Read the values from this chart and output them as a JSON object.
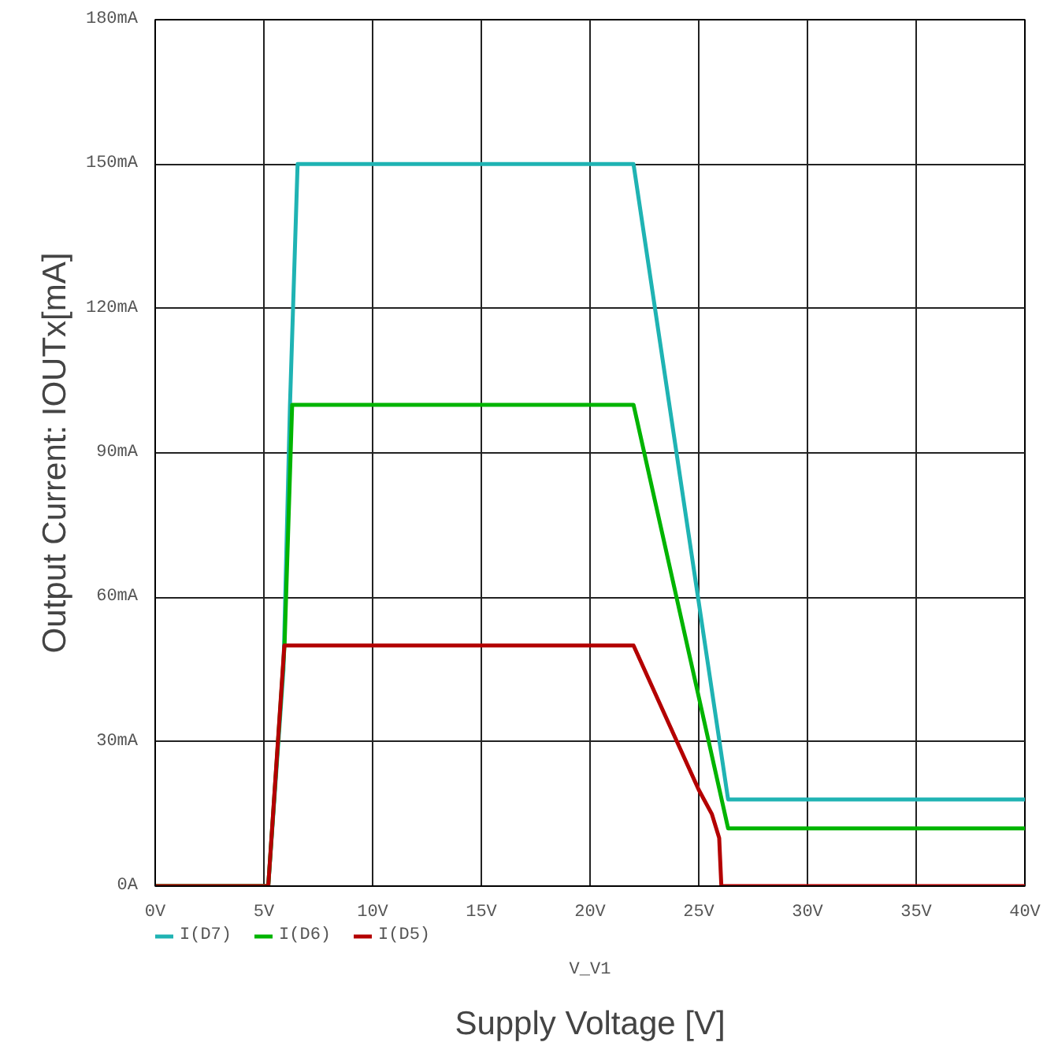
{
  "chart_data": {
    "type": "line",
    "xlabel": "Supply Voltage [V]",
    "ylabel": "Output Current: IOUTx[mA]",
    "annotations": [
      "V_V1"
    ],
    "xlim": [
      0,
      40
    ],
    "ylim": [
      0,
      180
    ],
    "xticks": [
      {
        "value": 0,
        "label": "0V"
      },
      {
        "value": 5,
        "label": "5V"
      },
      {
        "value": 10,
        "label": "10V"
      },
      {
        "value": 15,
        "label": "15V"
      },
      {
        "value": 20,
        "label": "20V"
      },
      {
        "value": 25,
        "label": "25V"
      },
      {
        "value": 30,
        "label": "30V"
      },
      {
        "value": 35,
        "label": "35V"
      },
      {
        "value": 40,
        "label": "40V"
      }
    ],
    "yticks": [
      {
        "value": 0,
        "label": "0A"
      },
      {
        "value": 30,
        "label": "30mA"
      },
      {
        "value": 60,
        "label": "60mA"
      },
      {
        "value": 90,
        "label": "90mA"
      },
      {
        "value": 120,
        "label": "120mA"
      },
      {
        "value": 150,
        "label": "150mA"
      },
      {
        "value": 180,
        "label": "180mA"
      }
    ],
    "grid": true,
    "legend": "bottom",
    "line_style": "solid",
    "series": [
      {
        "name": "I(D7)",
        "color": "#1fb3b3",
        "x": [
          0,
          5.2,
          5.9,
          6.2,
          6.55,
          22.0,
          26.35,
          40
        ],
        "values": [
          0,
          0,
          45,
          100,
          150,
          150,
          18,
          18
        ]
      },
      {
        "name": "I(D6)",
        "color": "#00b400",
        "x": [
          0,
          5.2,
          5.95,
          6.3,
          22.0,
          26.35,
          40
        ],
        "values": [
          0,
          0,
          50,
          100,
          100,
          12,
          12
        ]
      },
      {
        "name": "I(D5)",
        "color": "#b40000",
        "x": [
          0,
          5.2,
          5.94,
          22.0,
          25.0,
          25.6,
          25.94,
          26.04,
          40
        ],
        "values": [
          0,
          0,
          50,
          50,
          20,
          15,
          10,
          0,
          0
        ]
      }
    ]
  }
}
